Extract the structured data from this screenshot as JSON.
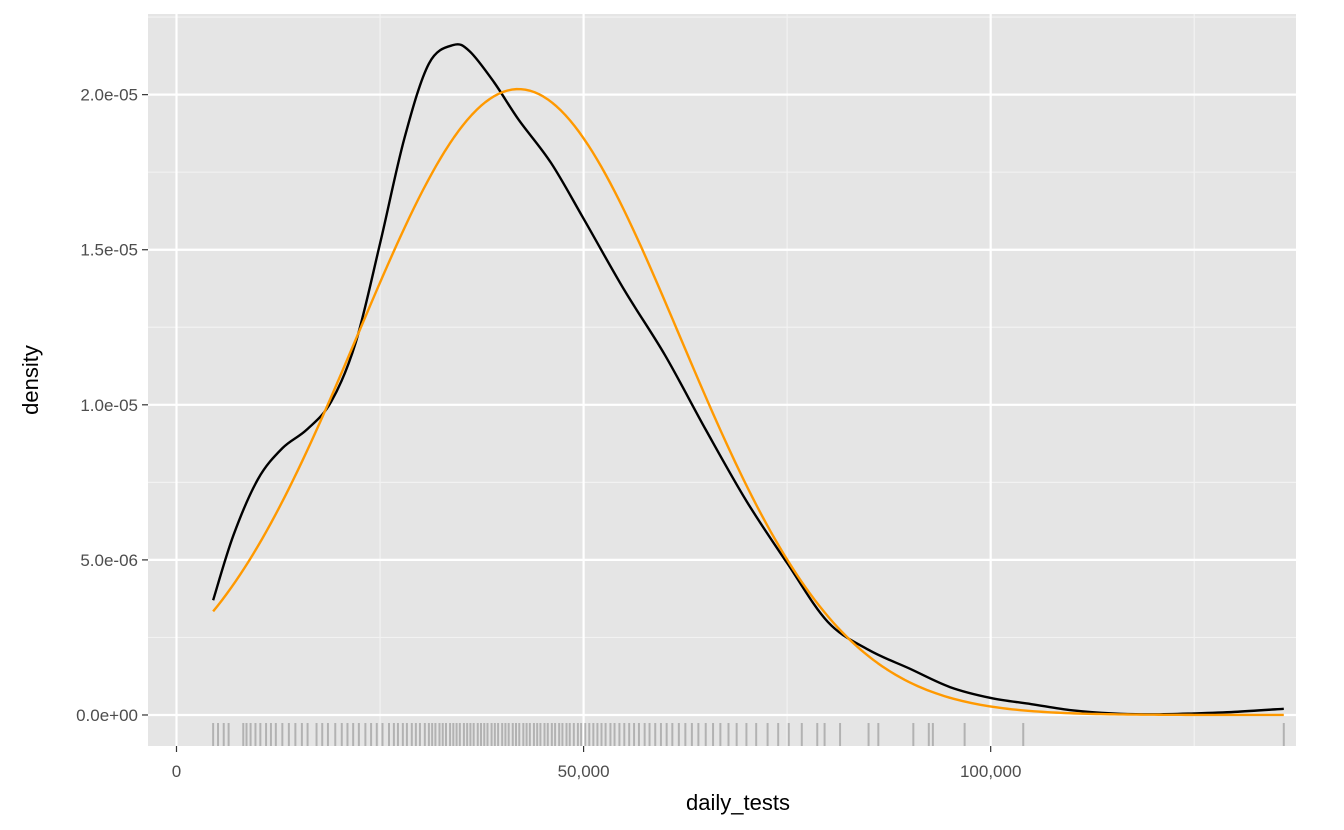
{
  "chart_data": {
    "type": "line",
    "xlabel": "daily_tests",
    "ylabel": "density",
    "xlim": [
      -3500,
      137500
    ],
    "ylim": [
      -1e-06,
      2.26e-05
    ],
    "x_ticks": [
      {
        "value": 0,
        "label": "0"
      },
      {
        "value": 50000,
        "label": "50,000"
      },
      {
        "value": 100000,
        "label": "100,000"
      }
    ],
    "y_ticks": [
      {
        "value": 0,
        "label": "0.0e+00"
      },
      {
        "value": 5e-06,
        "label": "5.0e-06"
      },
      {
        "value": 1e-05,
        "label": "1.0e-05"
      },
      {
        "value": 1.5e-05,
        "label": "1.5e-05"
      },
      {
        "value": 2e-05,
        "label": "2.0e-05"
      }
    ],
    "grid": true,
    "legend": "none",
    "background": "#e5e5e5",
    "series": [
      {
        "kind": "kernel-density",
        "color": "#000000",
        "x": [
          4500,
          7000,
          10000,
          13000,
          16000,
          19000,
          22000,
          25000,
          28000,
          31000,
          34000,
          36000,
          39000,
          42000,
          46000,
          50000,
          55000,
          60000,
          65000,
          70000,
          75000,
          80000,
          85000,
          90000,
          95000,
          100000,
          105000,
          110000,
          115000,
          120000,
          125000,
          130000,
          136000
        ],
        "y": [
          3.7e-06,
          5.8e-06,
          7.6e-06,
          8.6e-06,
          9.2e-06,
          1.01e-05,
          1.2e-05,
          1.52e-05,
          1.86e-05,
          2.1e-05,
          2.16e-05,
          2.14e-05,
          2.04e-05,
          1.92e-05,
          1.78e-05,
          1.6e-05,
          1.37e-05,
          1.16e-05,
          9.2e-06,
          6.9e-06,
          4.9e-06,
          3e-06,
          2.1e-06,
          1.5e-06,
          9e-07,
          5.5e-07,
          3.5e-07,
          1.5e-07,
          5e-08,
          2e-08,
          5e-08,
          1e-07,
          2e-07
        ]
      },
      {
        "kind": "normal-fit",
        "color": "#ff9900",
        "mean": 42000,
        "sd": 19770,
        "x_range": [
          4500,
          136000
        ]
      }
    ],
    "rug": {
      "color": "#000000",
      "x": [
        4500,
        5100,
        5800,
        6400,
        8200,
        8600,
        9100,
        9700,
        10300,
        11000,
        11600,
        12200,
        13000,
        13800,
        14600,
        15400,
        16100,
        17200,
        17900,
        18600,
        19500,
        20300,
        21000,
        21700,
        22400,
        23200,
        23900,
        24600,
        25300,
        26100,
        26700,
        27200,
        27800,
        28300,
        28900,
        29400,
        29900,
        30500,
        31000,
        31400,
        31800,
        32300,
        32700,
        33100,
        33600,
        34000,
        34400,
        34800,
        35300,
        35700,
        36100,
        36500,
        37000,
        37400,
        37800,
        38200,
        38700,
        39100,
        39500,
        40000,
        40400,
        40800,
        41300,
        41700,
        42100,
        42600,
        43000,
        43400,
        43900,
        44300,
        44700,
        45200,
        45600,
        46100,
        46500,
        47000,
        47400,
        47900,
        48300,
        48800,
        49300,
        49700,
        50200,
        50700,
        51200,
        51700,
        52200,
        52700,
        53300,
        53800,
        54400,
        55000,
        55600,
        56200,
        56800,
        57500,
        58100,
        58800,
        59500,
        60200,
        60900,
        61700,
        62500,
        63300,
        64100,
        65000,
        65900,
        66800,
        67800,
        68800,
        70000,
        71200,
        72600,
        73900,
        75200,
        76800,
        78700,
        79600,
        81500,
        85000,
        86200,
        90500,
        92400,
        92900,
        96800,
        104000,
        136000
      ]
    }
  }
}
